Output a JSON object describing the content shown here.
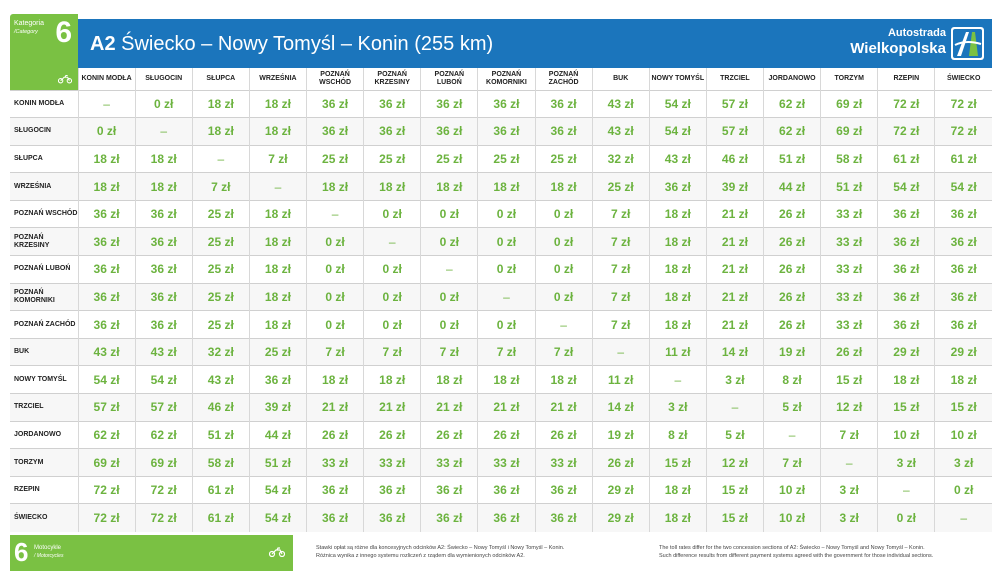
{
  "category": {
    "label": "Kategoria",
    "label_en": "/Category",
    "number": "6"
  },
  "header": {
    "road": "A2",
    "route": "Świecko – Nowy Tomyśl – Konin (255 km)",
    "brand_line1": "Autostrada",
    "brand_line2": "Wielkopolska",
    "bg_color": "#1b75bc",
    "accent_color": "#7ac143"
  },
  "columns": [
    "KONIN MODŁA",
    "SŁUGOCIN",
    "SŁUPCA",
    "WRZEŚNIA",
    "POZNAŃ WSCHÓD",
    "POZNAŃ KRZESINY",
    "POZNAŃ LUBOŃ",
    "POZNAŃ KOMORNIKI",
    "POZNAŃ ZACHÓD",
    "BUK",
    "NOWY TOMYŚL",
    "TRZCIEL",
    "JORDANOWO",
    "TORZYM",
    "RZEPIN",
    "ŚWIECKO"
  ],
  "rows": [
    {
      "name": "KONIN MODŁA",
      "cells": [
        "–",
        "0 zł",
        "18 zł",
        "18 zł",
        "36 zł",
        "36 zł",
        "36 zł",
        "36 zł",
        "36 zł",
        "43 zł",
        "54 zł",
        "57 zł",
        "62 zł",
        "69 zł",
        "72 zł",
        "72 zł"
      ]
    },
    {
      "name": "SŁUGOCIN",
      "cells": [
        "0 zł",
        "–",
        "18 zł",
        "18 zł",
        "36 zł",
        "36 zł",
        "36 zł",
        "36 zł",
        "36 zł",
        "43 zł",
        "54 zł",
        "57 zł",
        "62 zł",
        "69 zł",
        "72 zł",
        "72 zł"
      ]
    },
    {
      "name": "SŁUPCA",
      "cells": [
        "18 zł",
        "18 zł",
        "–",
        "7 zł",
        "25 zł",
        "25 zł",
        "25 zł",
        "25 zł",
        "25 zł",
        "32 zł",
        "43 zł",
        "46 zł",
        "51 zł",
        "58 zł",
        "61 zł",
        "61 zł"
      ]
    },
    {
      "name": "WRZEŚNIA",
      "cells": [
        "18 zł",
        "18 zł",
        "7 zł",
        "–",
        "18 zł",
        "18 zł",
        "18 zł",
        "18 zł",
        "18 zł",
        "25 zł",
        "36 zł",
        "39 zł",
        "44 zł",
        "51 zł",
        "54 zł",
        "54 zł"
      ]
    },
    {
      "name": "POZNAŃ WSCHÓD",
      "cells": [
        "36 zł",
        "36 zł",
        "25 zł",
        "18 zł",
        "–",
        "0 zł",
        "0 zł",
        "0 zł",
        "0 zł",
        "7 zł",
        "18 zł",
        "21 zł",
        "26 zł",
        "33 zł",
        "36 zł",
        "36 zł"
      ]
    },
    {
      "name": "POZNAŃ KRZESINY",
      "cells": [
        "36 zł",
        "36 zł",
        "25 zł",
        "18 zł",
        "0 zł",
        "–",
        "0 zł",
        "0 zł",
        "0 zł",
        "7 zł",
        "18 zł",
        "21 zł",
        "26 zł",
        "33 zł",
        "36 zł",
        "36 zł"
      ]
    },
    {
      "name": "POZNAŃ LUBOŃ",
      "cells": [
        "36 zł",
        "36 zł",
        "25 zł",
        "18 zł",
        "0 zł",
        "0 zł",
        "–",
        "0 zł",
        "0 zł",
        "7 zł",
        "18 zł",
        "21 zł",
        "26 zł",
        "33 zł",
        "36 zł",
        "36 zł"
      ]
    },
    {
      "name": "POZNAŃ KOMORNIKI",
      "cells": [
        "36 zł",
        "36 zł",
        "25 zł",
        "18 zł",
        "0 zł",
        "0 zł",
        "0 zł",
        "–",
        "0 zł",
        "7 zł",
        "18 zł",
        "21 zł",
        "26 zł",
        "33 zł",
        "36 zł",
        "36 zł"
      ]
    },
    {
      "name": "POZNAŃ ZACHÓD",
      "cells": [
        "36 zł",
        "36 zł",
        "25 zł",
        "18 zł",
        "0 zł",
        "0 zł",
        "0 zł",
        "0 zł",
        "–",
        "7 zł",
        "18 zł",
        "21 zł",
        "26 zł",
        "33 zł",
        "36 zł",
        "36 zł"
      ]
    },
    {
      "name": "BUK",
      "cells": [
        "43 zł",
        "43 zł",
        "32 zł",
        "25 zł",
        "7 zł",
        "7 zł",
        "7 zł",
        "7 zł",
        "7 zł",
        "–",
        "11 zł",
        "14 zł",
        "19 zł",
        "26 zł",
        "29 zł",
        "29 zł"
      ]
    },
    {
      "name": "NOWY TOMYŚL",
      "cells": [
        "54 zł",
        "54 zł",
        "43 zł",
        "36 zł",
        "18 zł",
        "18 zł",
        "18 zł",
        "18 zł",
        "18 zł",
        "11 zł",
        "–",
        "3 zł",
        "8 zł",
        "15 zł",
        "18 zł",
        "18 zł"
      ]
    },
    {
      "name": "TRZCIEL",
      "cells": [
        "57 zł",
        "57 zł",
        "46 zł",
        "39 zł",
        "21 zł",
        "21 zł",
        "21 zł",
        "21 zł",
        "21 zł",
        "14 zł",
        "3 zł",
        "–",
        "5 zł",
        "12 zł",
        "15 zł",
        "15 zł"
      ]
    },
    {
      "name": "JORDANOWO",
      "cells": [
        "62 zł",
        "62 zł",
        "51 zł",
        "44 zł",
        "26 zł",
        "26 zł",
        "26 zł",
        "26 zł",
        "26 zł",
        "19 zł",
        "8 zł",
        "5 zł",
        "–",
        "7 zł",
        "10 zł",
        "10 zł"
      ]
    },
    {
      "name": "TORZYM",
      "cells": [
        "69 zł",
        "69 zł",
        "58 zł",
        "51 zł",
        "33 zł",
        "33 zł",
        "33 zł",
        "33 zł",
        "33 zł",
        "26 zł",
        "15 zł",
        "12 zł",
        "7 zł",
        "–",
        "3 zł",
        "3 zł"
      ]
    },
    {
      "name": "RZEPIN",
      "cells": [
        "72 zł",
        "72 zł",
        "61 zł",
        "54 zł",
        "36 zł",
        "36 zł",
        "36 zł",
        "36 zł",
        "36 zł",
        "29 zł",
        "18 zł",
        "15 zł",
        "10 zł",
        "3 zł",
        "–",
        "0 zł"
      ]
    },
    {
      "name": "ŚWIECKO",
      "cells": [
        "72 zł",
        "72 zł",
        "61 zł",
        "54 zł",
        "36 zł",
        "36 zł",
        "36 zł",
        "36 zł",
        "36 zł",
        "29 zł",
        "18 zł",
        "15 zł",
        "10 zł",
        "3 zł",
        "0 zł",
        "–"
      ]
    }
  ],
  "footer": {
    "number": "6",
    "label": "Motocykle",
    "label_en": "/ Motorcycles",
    "note_pl_1": "Stawki opłat są różne dla koncesyjnych odcinków A2: Świecko – Nowy Tomyśl i Nowy Tomyśl – Konin.",
    "note_pl_2": "Różnica wynika z innego systemu rozliczeń z rządem dla wymienionych odcinków A2.",
    "note_en_1": "The toll rates differ for the two concession sections of A2: Świecko – Nowy Tomyśl and Nowy Tomyśl – Konin.",
    "note_en_2": "Such difference results from different payment systems agreed with the government for those individual sections."
  }
}
